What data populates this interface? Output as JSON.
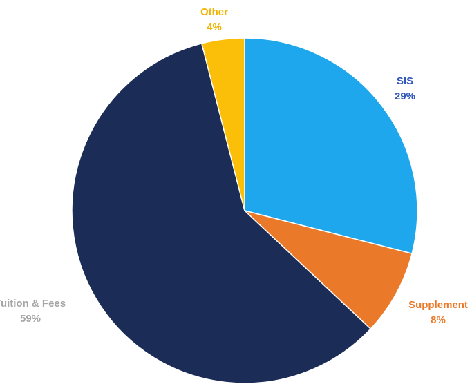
{
  "chart_data": {
    "type": "pie",
    "slices": [
      {
        "label": "SIS",
        "value": 29,
        "value_label": "29%",
        "color": "#1ea7ec",
        "label_color": "#2f55b8"
      },
      {
        "label": "Supplement",
        "value": 8,
        "value_label": "8%",
        "color": "#ea7a2a",
        "label_color": "#ea7a2a"
      },
      {
        "label": "Tuition & Fees",
        "value": 59,
        "value_label": "59%",
        "color": "#1b2c57",
        "label_color": "#a6a6a6"
      },
      {
        "label": "Other",
        "value": 4,
        "value_label": "4%",
        "color": "#fbbf0a",
        "label_color": "#f0b400"
      }
    ],
    "start": "top",
    "direction": "clockwise",
    "legend": "none"
  }
}
